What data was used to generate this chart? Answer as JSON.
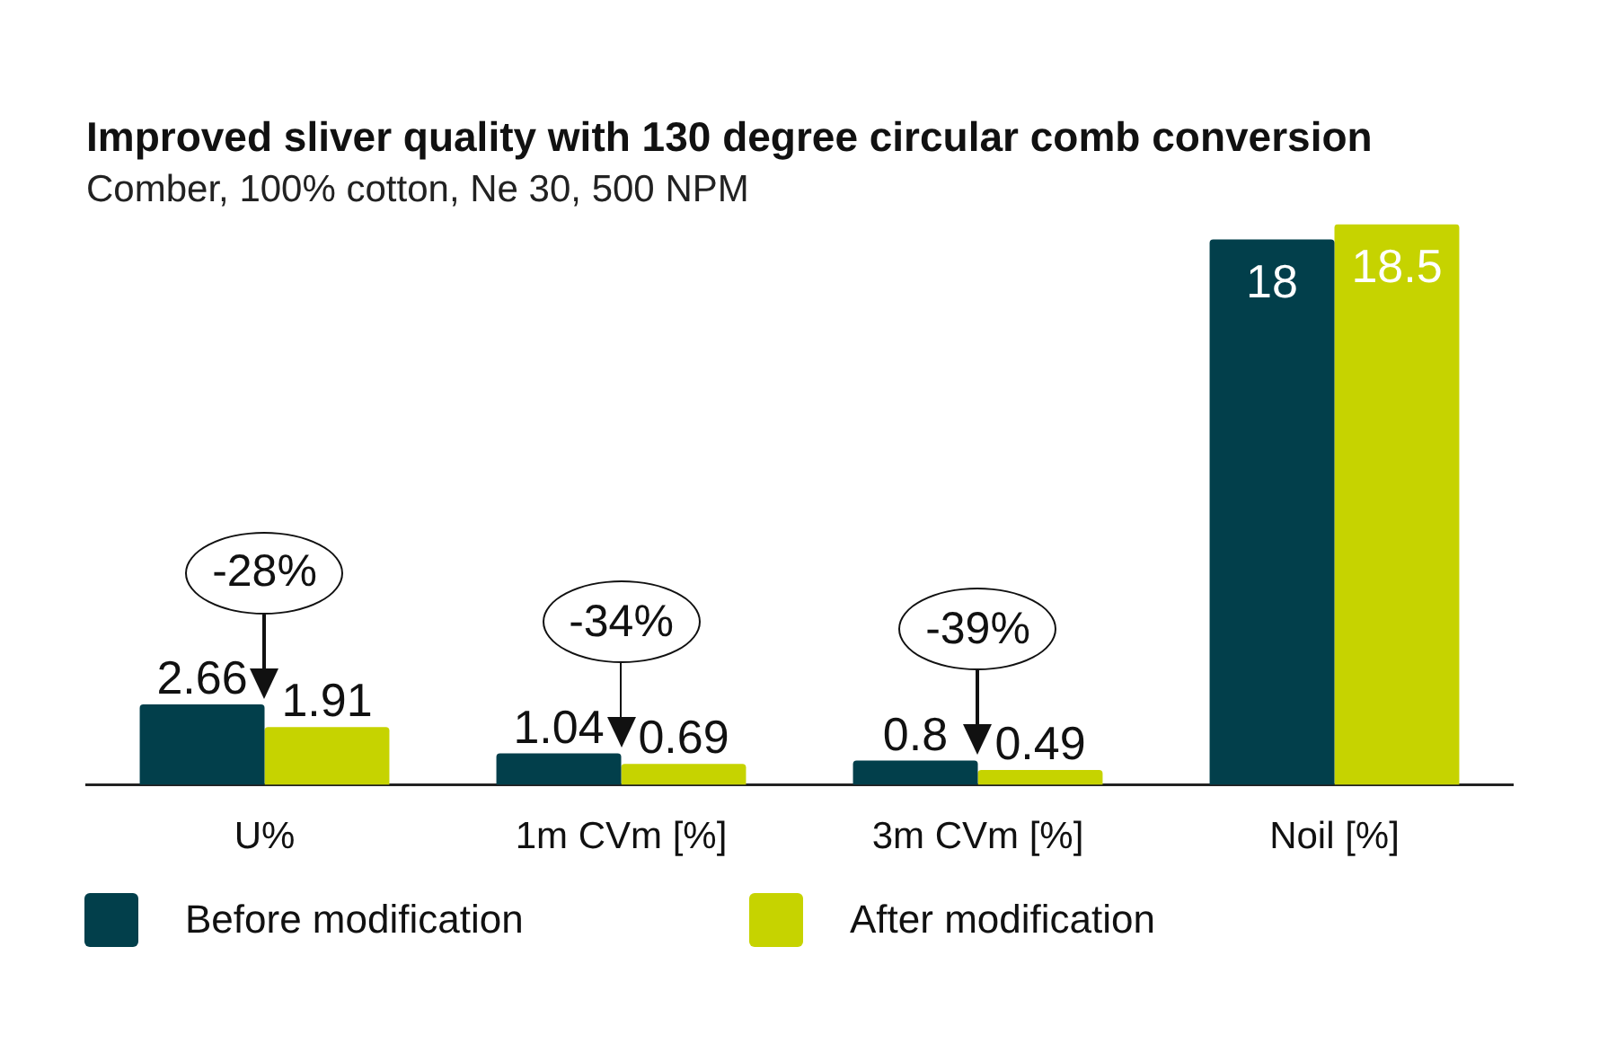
{
  "chart_data": {
    "type": "bar",
    "title": "Improved sliver quality with 130 degree circular comb conversion",
    "subtitle": "Comber, 100% cotton, Ne 30, 500 NPM",
    "categories": [
      "U%",
      "1m CVm [%]",
      "3m CVm [%]",
      "Noil [%]"
    ],
    "series": [
      {
        "name": "Before modification",
        "color": "#023f4b",
        "values": [
          2.66,
          1.04,
          0.8,
          18
        ]
      },
      {
        "name": "After modification",
        "color": "#c6d300",
        "values": [
          1.91,
          0.69,
          0.49,
          18.5
        ]
      }
    ],
    "data_labels": true,
    "legend": "bottom",
    "annotations": [
      {
        "text": "-28%",
        "x": "U%",
        "y": 2.66
      },
      {
        "text": "-34%",
        "x": "1m CVm [%]",
        "y": 1.04
      },
      {
        "text": "-39%",
        "x": "3m CVm [%]",
        "y": 0.8
      }
    ]
  }
}
